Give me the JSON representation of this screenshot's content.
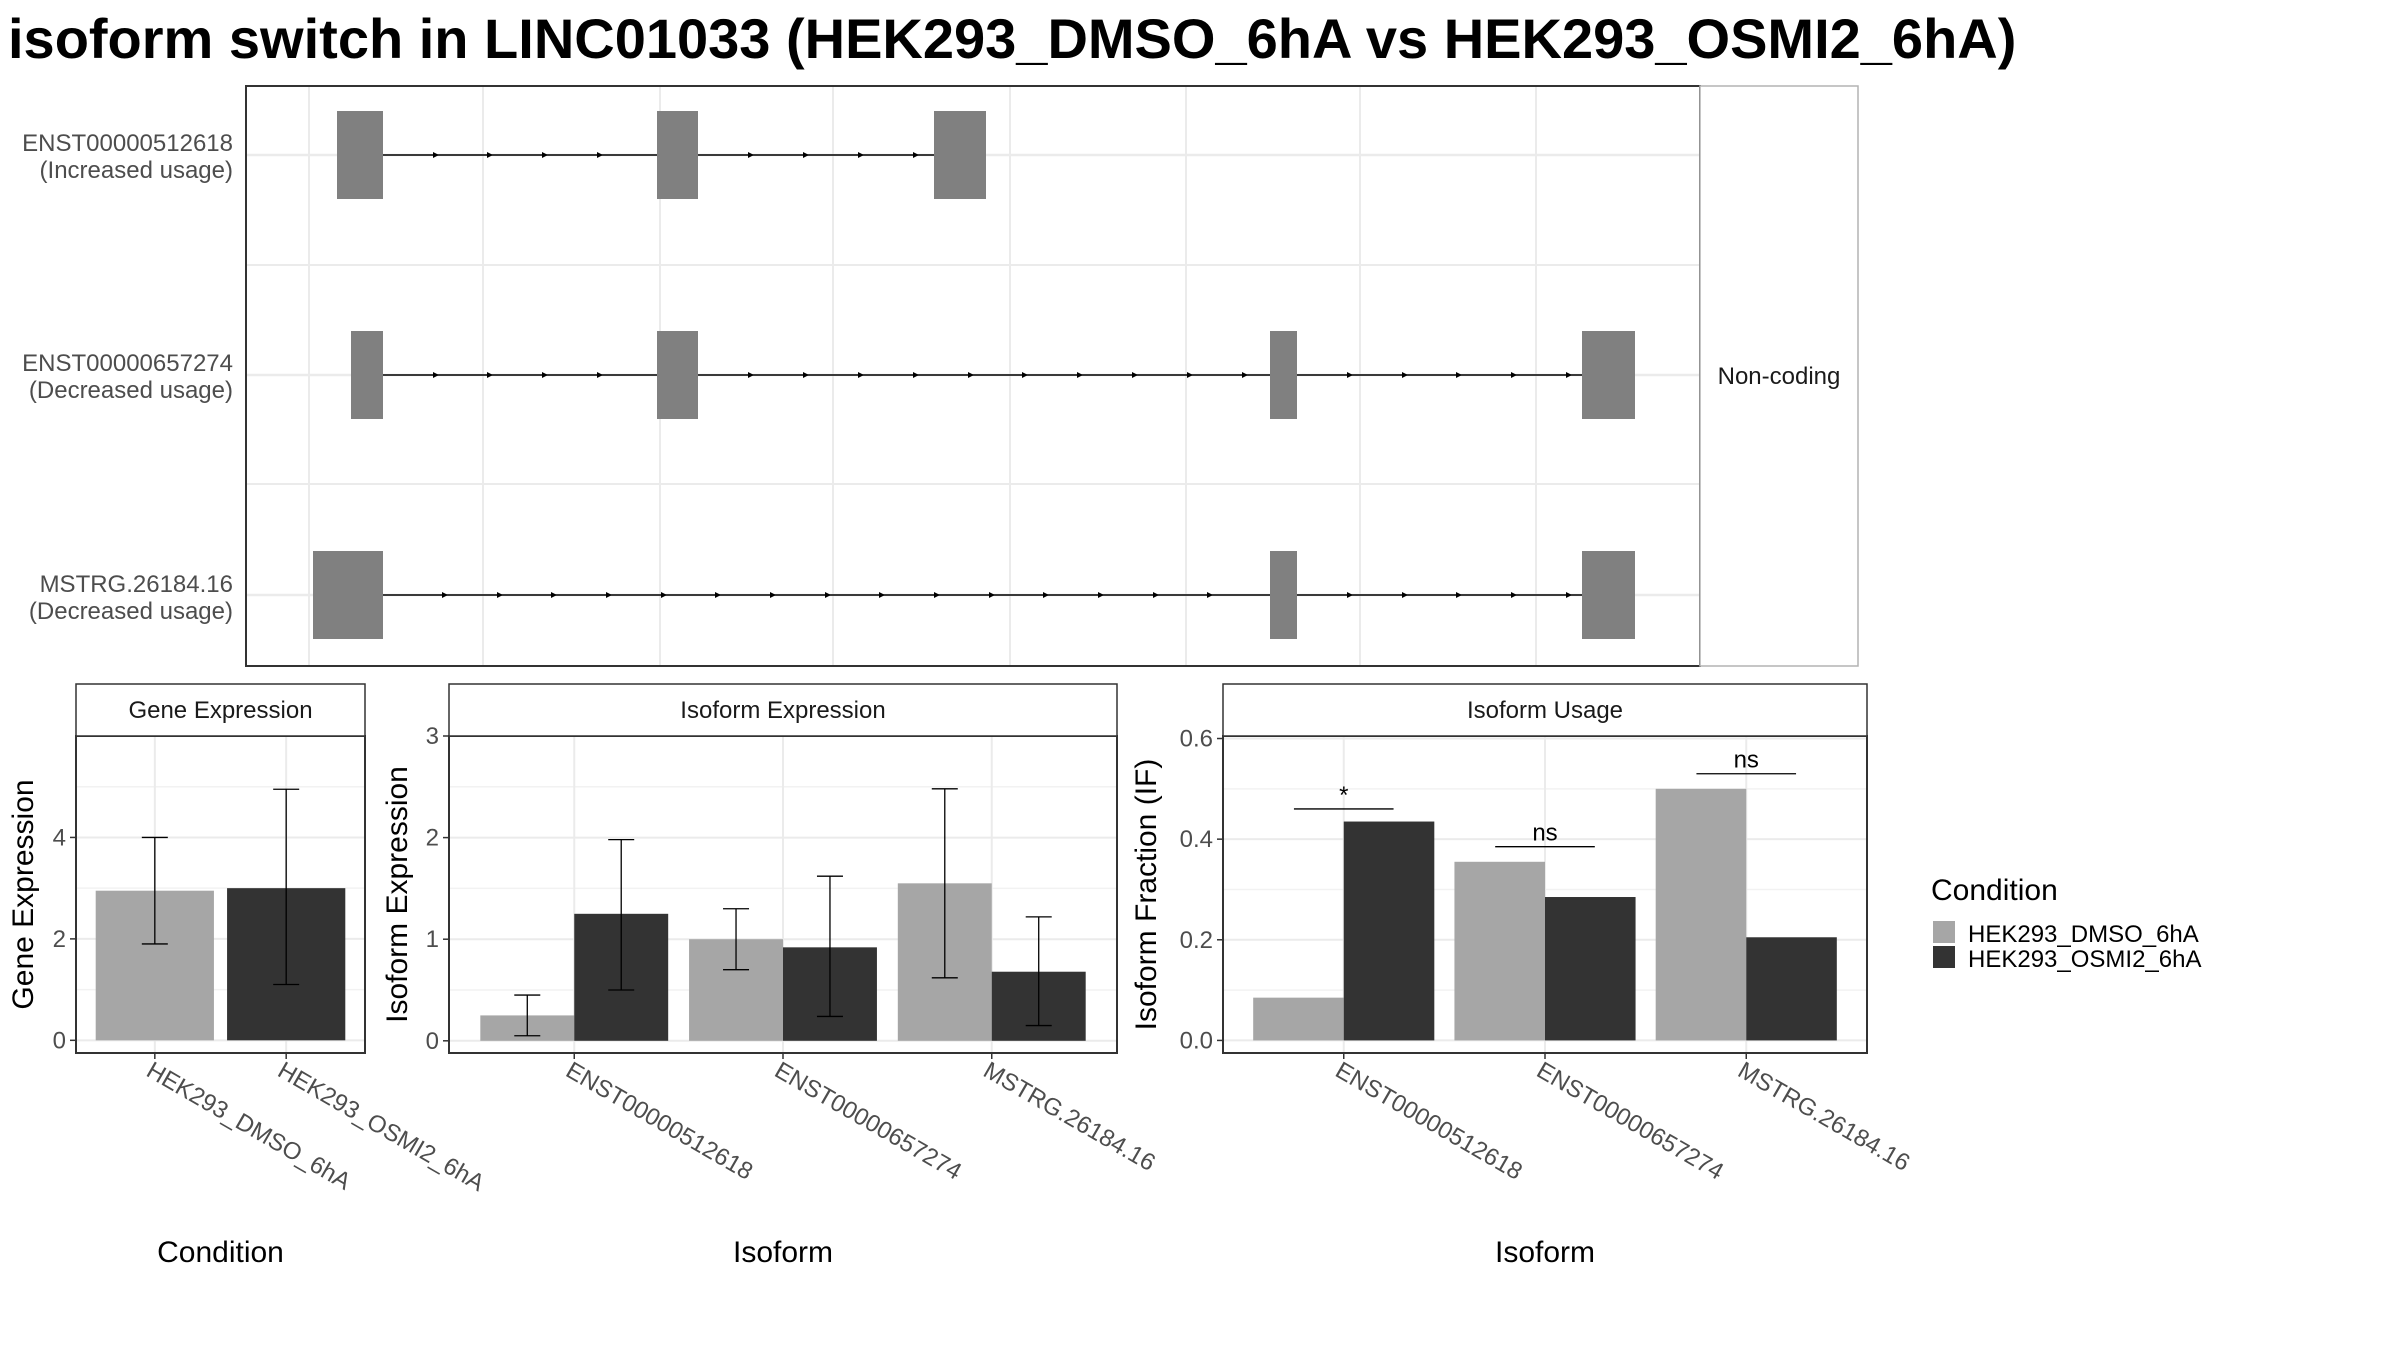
{
  "title": "isoform switch in LINC01033 (HEK293_DMSO_6hA vs HEK293_OSMI2_6hA)",
  "transcript_panel": {
    "strip_label": "Non-coding",
    "transcripts": [
      {
        "id": "ENST00000512618",
        "usage": "(Increased usage)"
      },
      {
        "id": "ENST00000657274",
        "usage": "(Decreased usage)"
      },
      {
        "id": "MSTRG.26184.16",
        "usage": "(Decreased usage)"
      }
    ]
  },
  "legend": {
    "title": "Condition",
    "items": [
      {
        "label": "HEK293_DMSO_6hA",
        "color": "#a6a6a6"
      },
      {
        "label": "HEK293_OSMI2_6hA",
        "color": "#333333"
      }
    ]
  },
  "chart_data": [
    {
      "type": "bar",
      "title": "Gene Expression",
      "xlabel": "Condition",
      "ylabel": "Gene Expression",
      "categories": [
        "HEK293_DMSO_6hA",
        "HEK293_OSMI2_6hA"
      ],
      "values": [
        2.95,
        3.0
      ],
      "error_low": [
        1.9,
        1.1
      ],
      "error_high": [
        4.0,
        4.95
      ],
      "colors": [
        "#a6a6a6",
        "#333333"
      ],
      "ylim": [
        -0.25,
        6.0
      ],
      "yticks": [
        0,
        2,
        4
      ],
      "ytick_labels": [
        "0",
        "2",
        "4"
      ],
      "grid": true
    },
    {
      "type": "bar",
      "title": "Isoform Expression",
      "xlabel": "Isoform",
      "ylabel": "Isoform Expression",
      "categories": [
        "ENST00000512618",
        "ENST00000657274",
        "MSTRG.26184.16"
      ],
      "series": [
        {
          "name": "HEK293_DMSO_6hA",
          "values": [
            0.25,
            1.0,
            1.55
          ],
          "error_low": [
            0.05,
            0.7,
            0.62
          ],
          "error_high": [
            0.45,
            1.3,
            2.48
          ]
        },
        {
          "name": "HEK293_OSMI2_6hA",
          "values": [
            1.25,
            0.92,
            0.68
          ],
          "error_low": [
            0.5,
            0.24,
            0.15
          ],
          "error_high": [
            1.98,
            1.62,
            1.22
          ]
        }
      ],
      "ylim": [
        -0.12,
        3.0
      ],
      "yticks": [
        0,
        1,
        2,
        3
      ],
      "ytick_labels": [
        "0",
        "1",
        "2",
        "3"
      ],
      "grid": true
    },
    {
      "type": "bar",
      "title": "Isoform Usage",
      "xlabel": "Isoform",
      "ylabel": "Isoform Fraction (IF)",
      "categories": [
        "ENST00000512618",
        "ENST00000657274",
        "MSTRG.26184.16"
      ],
      "series": [
        {
          "name": "HEK293_DMSO_6hA",
          "values": [
            0.085,
            0.355,
            0.5
          ]
        },
        {
          "name": "HEK293_OSMI2_6hA",
          "values": [
            0.435,
            0.285,
            0.205
          ]
        }
      ],
      "significance": [
        "*",
        "ns",
        "ns"
      ],
      "significance_y": [
        0.46,
        0.385,
        0.53
      ],
      "ylim": [
        -0.025,
        0.605
      ],
      "yticks": [
        0.0,
        0.2,
        0.4,
        0.6
      ],
      "ytick_labels": [
        "0.0",
        "0.2",
        "0.4",
        "0.6"
      ],
      "grid": true
    }
  ]
}
